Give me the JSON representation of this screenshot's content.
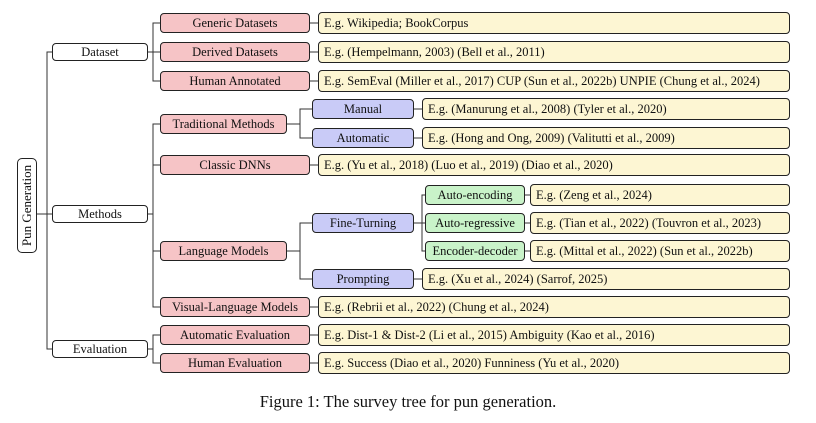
{
  "tree": {
    "root": "Pun Generation",
    "dataset": {
      "label": "Dataset",
      "generic": {
        "label": "Generic Datasets",
        "leaf": "E.g.  Wikipedia; BookCorpus"
      },
      "derived": {
        "label": "Derived Datasets",
        "leaf": "E.g.  (Hempelmann, 2003) (Bell et al., 2011)"
      },
      "human": {
        "label": "Human Annotated",
        "leaf": "E.g.  SemEval (Miller et al., 2017) CUP (Sun et al., 2022b) UNPIE (Chung et al., 2024)"
      }
    },
    "methods": {
      "label": "Methods",
      "traditional": {
        "label": "Traditional Methods",
        "manual": {
          "label": "Manual",
          "leaf": "E.g.  (Manurung et al., 2008) (Tyler et al., 2020)"
        },
        "automatic": {
          "label": "Automatic",
          "leaf": "E.g.  (Hong and Ong, 2009) (Valitutti et al., 2009)"
        }
      },
      "dnn": {
        "label": "Classic DNNs",
        "leaf": "E.g.  (Yu et al., 2018) (Luo et al., 2019) (Diao et al., 2020)"
      },
      "lm": {
        "label": "Language Models",
        "finetuning": {
          "label": "Fine-Turning",
          "autoencoding": {
            "label": "Auto-encoding",
            "leaf": "E.g.  (Zeng et al., 2024)"
          },
          "autoregressive": {
            "label": "Auto-regressive",
            "leaf": "E.g.  (Tian et al., 2022) (Touvron et al., 2023)"
          },
          "encdec": {
            "label": "Encoder-decoder",
            "leaf": "E.g.  (Mittal et al., 2022) (Sun et al., 2022b)"
          }
        },
        "prompting": {
          "label": "Prompting",
          "leaf": "E.g.  (Xu et al., 2024) (Sarrof, 2025)"
        }
      },
      "vlm": {
        "label": "Visual-Language Models",
        "leaf": "E.g.  (Rebrii et al., 2022) (Chung et al., 2024)"
      }
    },
    "evaluation": {
      "label": "Evaluation",
      "auto": {
        "label": "Automatic Evaluation",
        "leaf": "E.g.  Dist-1 & Dist-2 (Li et al., 2015) Ambiguity (Kao et al., 2016)"
      },
      "human": {
        "label": "Human Evaluation",
        "leaf": "E.g.  Success (Diao et al., 2020) Funniness (Yu et al., 2020)"
      }
    }
  },
  "caption": "Figure 1: The survey tree for pun generation.",
  "colors": {
    "level2": "#f6c4c6",
    "level3": "#c9cbf7",
    "level4": "#c9f3c9",
    "leaf": "#fdf6d3"
  }
}
